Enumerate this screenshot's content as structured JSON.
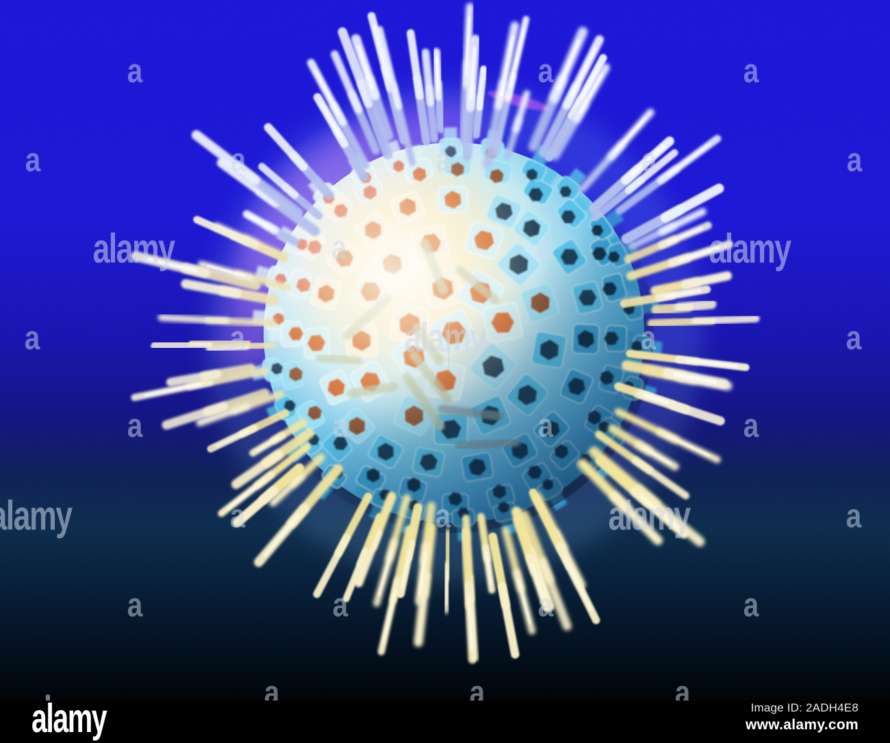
{
  "watermark": {
    "word": "alamy",
    "letter": "a",
    "color": "rgba(206,215,232,0.55)",
    "letter_color": "rgba(206,215,232,0.50)"
  },
  "footer": {
    "logo": "alamy",
    "image_id": "Image ID: 2ADH4E8",
    "website": "www.alamy.com"
  },
  "palette": {
    "bg_top": "#1a15d6",
    "bg_blue": "#1b16d2",
    "bg_violet": "#1713ac",
    "bg_indigo": "#121380",
    "bg_navy": "#0e1f54",
    "bg_teal": "#0c2a4a",
    "bg_deepteal": "#071c34",
    "bg_dark": "#030f1d",
    "bg_black": "#000000",
    "sphere_core": "#fdf6e0",
    "sphere_cream": "#f6e9c4",
    "sphere_pale": "#c2e7f0",
    "sphere_cyan": "#6cc2e8",
    "sphere_blue": "#379ad6",
    "sphere_deep": "#2180bc",
    "capsomere_cream": "#f6eed6",
    "capsomere_pale": "#cfeef2",
    "capsomere_light": "#9adef4",
    "capsomere_cyan": "#52bfe8",
    "capsomere_blue": "#35a0d6",
    "capsomere_edge": "#bff0fc",
    "dot_orange": "#d05c28",
    "dot_brown": "#8a4c2c",
    "dot_dark": "#17344e",
    "dot_deep": "#102a42",
    "spike_top_in": "#b2bfee",
    "spike_top_out": "#edf2ff",
    "spike_side_in": "#ece1b2",
    "spike_side_out": "#f4efd8",
    "spike_right_in": "#f0e0a0",
    "spike_down_in": "#f2e49a",
    "spike_down_out": "#f8efc6",
    "spike_core": "#ffffff",
    "spike_core_warm": "#fffbe8",
    "stub_warm": "#b9c4a4",
    "stub_cool": "#7f98a0",
    "halo_blue": "#82befa",
    "purple": "rgba(150,62,206,0.42)",
    "magenta": "rgba(214,70,196,0.30)",
    "flare": "rgba(226,70,206,0.50)"
  }
}
